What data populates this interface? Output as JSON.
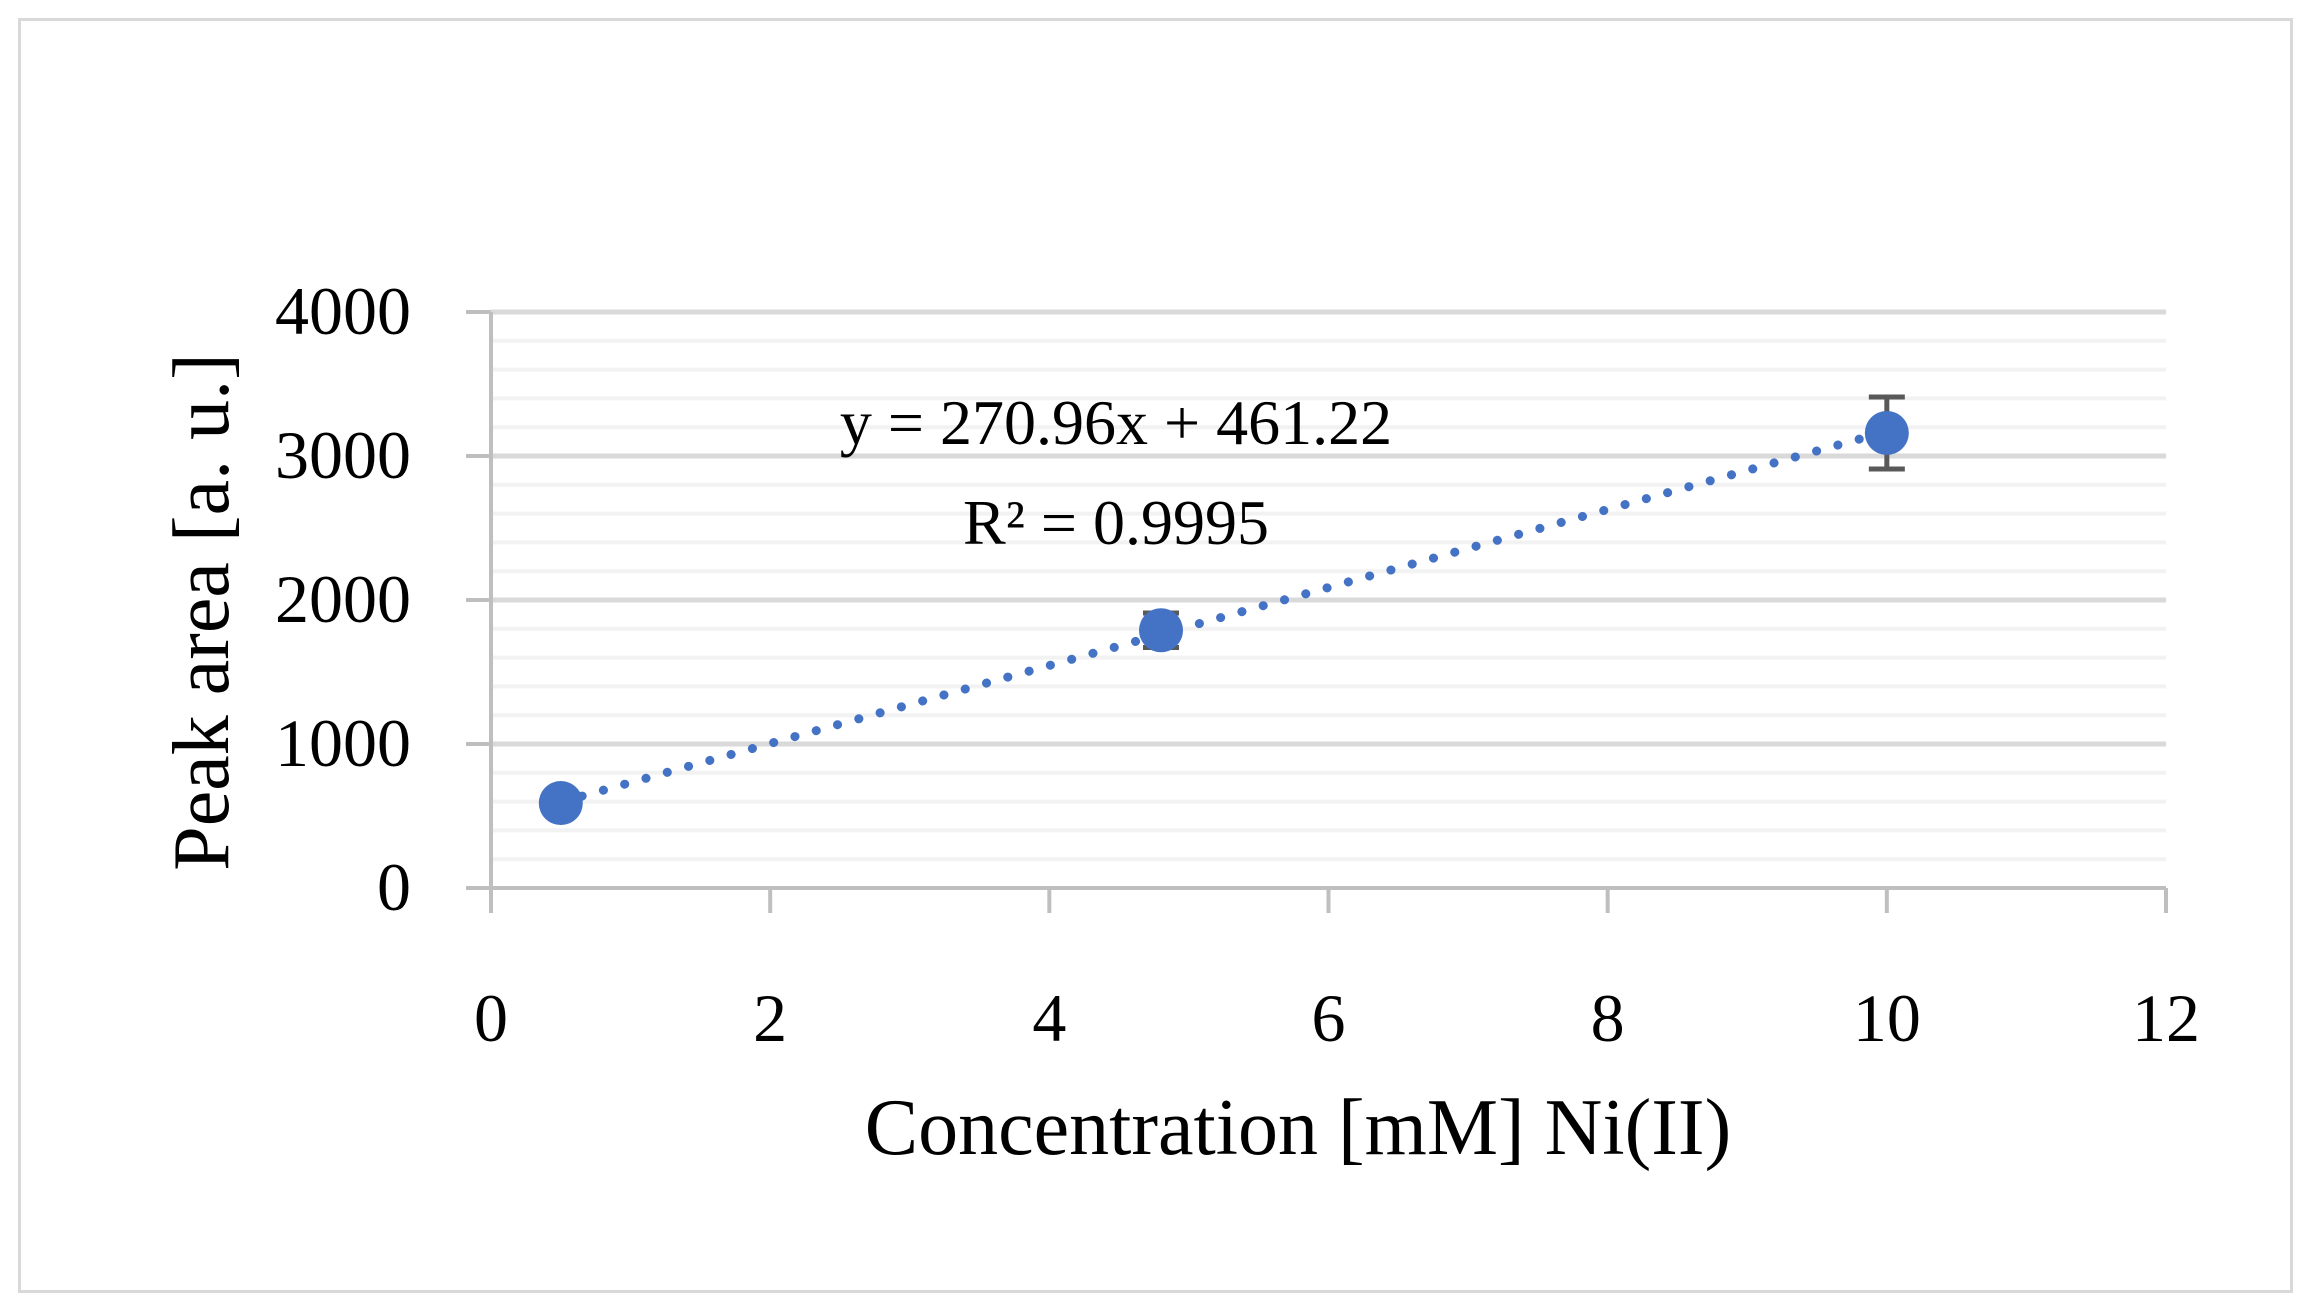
{
  "chart_data": {
    "type": "scatter",
    "title": "",
    "xlabel": "Concentration [mM] Ni(II)",
    "ylabel": "Peak area [a. u.]",
    "xlim": [
      0,
      12
    ],
    "ylim": [
      0,
      4000
    ],
    "x_ticks": [
      0,
      2,
      4,
      6,
      8,
      10,
      12
    ],
    "y_ticks": [
      0,
      1000,
      2000,
      3000,
      4000
    ],
    "x_tick_labels": [
      "0",
      "2",
      "4",
      "6",
      "8",
      "10",
      "12"
    ],
    "y_tick_labels": [
      "0",
      "1000",
      "2000",
      "3000",
      "4000"
    ],
    "grid": {
      "major_y": true,
      "minor_y": true,
      "minor_y_step": 200,
      "x": false
    },
    "series": [
      {
        "x": [
          0.5,
          4.8,
          10
        ],
        "y": [
          590,
          1790,
          3160
        ],
        "error_y": [
          40,
          120,
          250
        ],
        "marker": "circle",
        "color": "#4472c4"
      }
    ],
    "trendline": {
      "type": "linear",
      "slope": 270.96,
      "intercept": 461.22,
      "x_range": [
        0.5,
        10
      ],
      "style": "dotted",
      "color": "#4472c4"
    },
    "annotations": {
      "equation": "y = 270.96x + 461.22",
      "r_squared": "R² = 0.9995"
    },
    "colors": {
      "marker": "#4472c4",
      "major_grid": "#d9d9d9",
      "minor_grid": "#f2f2f2",
      "axis": "#bfbfbf",
      "error_bar": "#595959"
    }
  }
}
